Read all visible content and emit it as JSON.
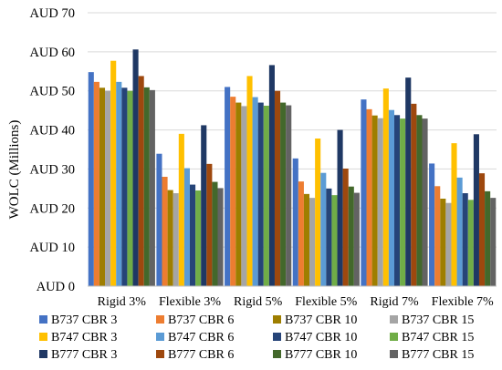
{
  "chart_data": {
    "type": "bar",
    "ylabel": "WOLC (Millions)",
    "xlabel": "",
    "ylim": [
      0,
      70
    ],
    "yticks": [
      "AUD 0",
      "AUD 10",
      "AUD 20",
      "AUD 30",
      "AUD 40",
      "AUD 50",
      "AUD 60",
      "AUD 70"
    ],
    "grid": true,
    "legend_position": "bottom",
    "categories": [
      "Rigid 3%",
      "Flexible 3%",
      "Rigid 5%",
      "Flexible 5%",
      "Rigid 7%",
      "Flexible 7%"
    ],
    "series": [
      {
        "name": "B737 CBR 3",
        "color": "#4472C4",
        "values": [
          54.8,
          33.9,
          51.0,
          32.7,
          47.8,
          31.4
        ]
      },
      {
        "name": "B737 CBR 6",
        "color": "#ED7D31",
        "values": [
          52.3,
          28.0,
          48.5,
          26.8,
          45.3,
          25.6
        ]
      },
      {
        "name": "B737 CBR 10",
        "color": "#9E7E00",
        "values": [
          50.8,
          24.6,
          47.0,
          23.6,
          43.7,
          22.4
        ]
      },
      {
        "name": "B737 CBR 15",
        "color": "#A5A5A5",
        "values": [
          50.0,
          23.8,
          46.1,
          22.6,
          43.0,
          21.3
        ]
      },
      {
        "name": "B747 CBR 3",
        "color": "#FFC000",
        "values": [
          57.7,
          39.0,
          53.8,
          37.8,
          50.6,
          36.6
        ]
      },
      {
        "name": "B747 CBR 6",
        "color": "#5B9BD5",
        "values": [
          52.3,
          30.2,
          48.4,
          29.0,
          45.1,
          27.8
        ]
      },
      {
        "name": "B747 CBR 10",
        "color": "#264478",
        "values": [
          50.8,
          26.0,
          47.0,
          25.0,
          43.8,
          23.8
        ]
      },
      {
        "name": "B747 CBR 15",
        "color": "#70AD47",
        "values": [
          50.0,
          24.5,
          46.2,
          23.3,
          42.9,
          22.1
        ]
      },
      {
        "name": "B777 CBR 3",
        "color": "#1F3864",
        "values": [
          60.6,
          41.2,
          56.6,
          40.0,
          53.4,
          38.9
        ]
      },
      {
        "name": "B777 CBR 6",
        "color": "#9E480E",
        "values": [
          53.8,
          31.3,
          50.0,
          30.1,
          46.7,
          28.9
        ]
      },
      {
        "name": "B777 CBR 10",
        "color": "#43682B",
        "values": [
          50.9,
          26.7,
          47.0,
          25.5,
          43.8,
          24.3
        ]
      },
      {
        "name": "B777 CBR 15",
        "color": "#636363",
        "values": [
          50.2,
          25.1,
          46.3,
          23.9,
          42.9,
          22.6
        ]
      }
    ]
  }
}
